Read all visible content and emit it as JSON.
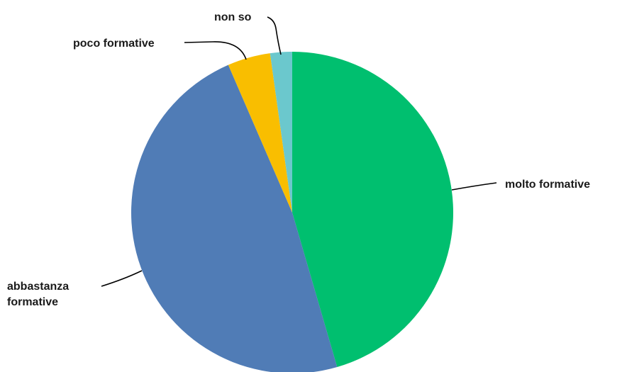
{
  "chart_data": {
    "type": "pie",
    "title": "",
    "start": "top",
    "direction": "clockwise",
    "legend": "none",
    "slices": [
      {
        "label": [
          "molto formative"
        ],
        "value": 45.5,
        "color": "#00BF6F"
      },
      {
        "label": [
          "abbastanza",
          "formative"
        ],
        "value": 48.0,
        "color": "#507CB6"
      },
      {
        "label": [
          "poco formative"
        ],
        "value": 4.3,
        "color": "#F9BE00"
      },
      {
        "label": [
          "non so"
        ],
        "value": 2.2,
        "color": "#6BC8CD"
      }
    ]
  }
}
